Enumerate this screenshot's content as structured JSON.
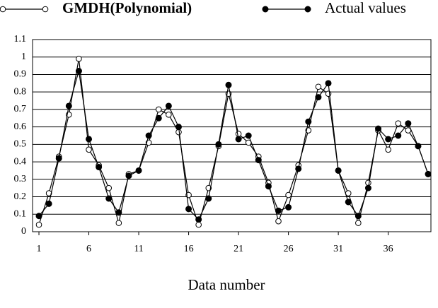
{
  "chart_data": {
    "type": "line",
    "x_label": "Data number",
    "x": [
      1,
      2,
      3,
      4,
      5,
      6,
      7,
      8,
      9,
      10,
      11,
      12,
      13,
      14,
      15,
      16,
      17,
      18,
      19,
      20,
      21,
      22,
      23,
      24,
      25,
      26,
      27,
      28,
      29,
      30,
      31,
      32,
      33,
      34,
      35,
      36,
      37,
      38,
      39,
      40
    ],
    "series": [
      {
        "name": "GMDH(Polynomial)",
        "color": "#000000",
        "marker": "open",
        "values": [
          0.04,
          0.22,
          0.43,
          0.67,
          0.99,
          0.47,
          0.38,
          0.25,
          0.05,
          0.33,
          0.35,
          0.51,
          0.7,
          0.67,
          0.57,
          0.21,
          0.04,
          0.25,
          0.49,
          0.79,
          0.56,
          0.51,
          0.43,
          0.28,
          0.06,
          0.21,
          0.38,
          0.58,
          0.83,
          0.79,
          0.35,
          0.22,
          0.05,
          0.28,
          0.58,
          0.47,
          0.62,
          0.58,
          0.49,
          0.33
        ]
      },
      {
        "name": "Actual values",
        "color": "#000000",
        "marker": "filled",
        "values": [
          0.09,
          0.16,
          0.42,
          0.72,
          0.92,
          0.53,
          0.37,
          0.19,
          0.11,
          0.32,
          0.35,
          0.55,
          0.65,
          0.72,
          0.6,
          0.13,
          0.07,
          0.19,
          0.5,
          0.84,
          0.53,
          0.55,
          0.41,
          0.26,
          0.12,
          0.14,
          0.36,
          0.63,
          0.77,
          0.85,
          0.35,
          0.17,
          0.09,
          0.25,
          0.59,
          0.53,
          0.55,
          0.62,
          0.49,
          0.33
        ]
      }
    ],
    "xlim": [
      0.36,
      40.28
    ],
    "xticks": [
      1,
      6,
      11,
      16,
      21,
      26,
      31,
      36
    ],
    "ylim": [
      0,
      1.1
    ],
    "yticks": [
      0,
      0.1,
      0.2,
      0.3,
      0.4,
      0.5,
      0.6,
      0.7,
      0.8,
      0.9,
      1,
      1.1
    ],
    "grid": true,
    "legend": "top"
  }
}
